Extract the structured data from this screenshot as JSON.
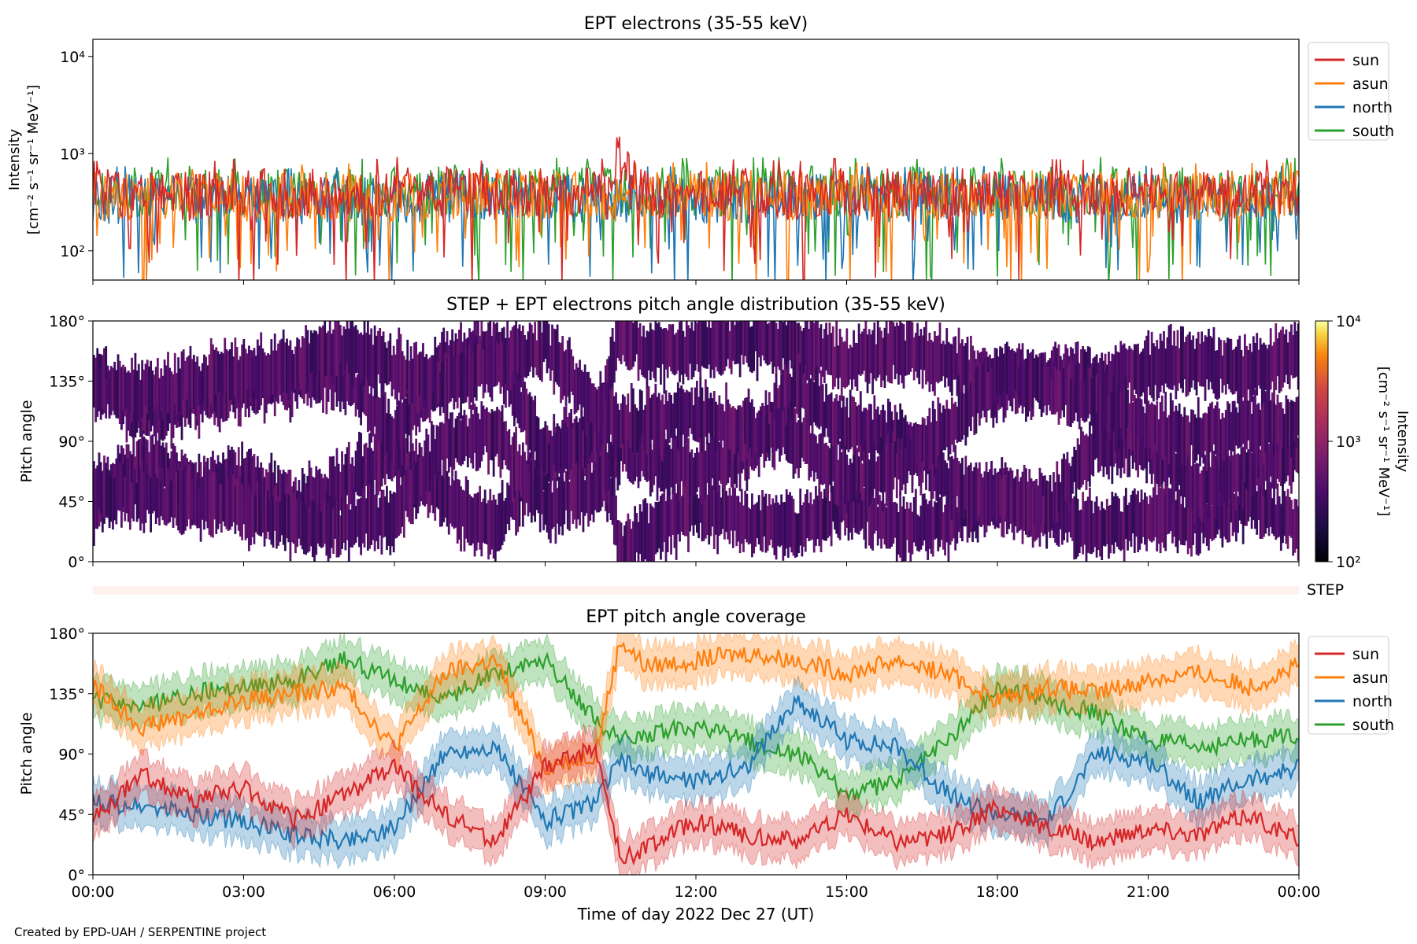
{
  "footer": "Created by EPD-UAH / SERPENTINE project",
  "colors": {
    "sun": "#d62728",
    "asun": "#ff7f0e",
    "north": "#1f77b4",
    "south": "#2ca02c"
  },
  "chart_data": [
    {
      "id": "intensity",
      "type": "line",
      "title": "EPT electrons (35-55 keV)",
      "ylabel_line1": "Intensity",
      "ylabel_line2": "[cm⁻² s⁻¹ sr⁻¹ MeV⁻¹]",
      "yscale": "log",
      "ylim": [
        50,
        15000
      ],
      "yticks": [
        {
          "value": 100,
          "label": "10²"
        },
        {
          "value": 1000,
          "label": "10³"
        },
        {
          "value": 10000,
          "label": "10⁴"
        }
      ],
      "xlim": [
        "2022-12-27 00:00",
        "2022-12-28 00:00"
      ],
      "legend_position": "outside-right-top",
      "series": [
        {
          "name": "sun",
          "color": "#d62728",
          "x_hours": [
            0,
            1,
            2,
            3,
            4,
            5,
            6,
            7,
            8,
            9,
            10,
            10.5,
            11,
            12,
            13,
            14,
            15,
            16,
            17,
            18,
            19,
            20,
            21,
            22,
            23,
            24
          ],
          "values": [
            380,
            400,
            360,
            410,
            390,
            370,
            420,
            400,
            380,
            410,
            400,
            900,
            420,
            390,
            400,
            380,
            410,
            390,
            400,
            380,
            400,
            390,
            410,
            380,
            390,
            400
          ]
        },
        {
          "name": "asun",
          "color": "#ff7f0e",
          "x_hours": [
            0,
            2,
            4,
            6,
            8,
            10,
            12,
            14,
            16,
            18,
            20,
            22,
            24
          ],
          "values": [
            360,
            380,
            350,
            370,
            390,
            360,
            370,
            380,
            360,
            370,
            380,
            360,
            370
          ]
        },
        {
          "name": "north",
          "color": "#1f77b4",
          "x_hours": [
            0,
            2,
            4,
            6,
            8,
            10,
            12,
            14,
            16,
            18,
            20,
            22,
            24
          ],
          "values": [
            330,
            350,
            320,
            340,
            360,
            330,
            340,
            350,
            330,
            340,
            350,
            330,
            340
          ]
        },
        {
          "name": "south",
          "color": "#2ca02c",
          "x_hours": [
            0,
            2,
            4,
            6,
            8,
            10,
            12,
            14,
            16,
            18,
            20,
            22,
            24
          ],
          "values": [
            400,
            420,
            390,
            410,
            430,
            400,
            410,
            420,
            400,
            410,
            420,
            400,
            410
          ]
        }
      ]
    },
    {
      "id": "pad",
      "type": "heatmap",
      "title": "STEP + EPT electrons pitch angle distribution (35-55 keV)",
      "ylabel": "Pitch angle",
      "ylim": [
        0,
        180
      ],
      "yticks": [
        "0°",
        "45°",
        "90°",
        "135°",
        "180°"
      ],
      "xlim": [
        "2022-12-27 00:00",
        "2022-12-28 00:00"
      ],
      "colorbar": {
        "label_line1": "Intensity",
        "label_line2": "[cm⁻² s⁻¹ sr⁻¹ MeV⁻¹]",
        "scale": "log",
        "range": [
          100,
          10000
        ],
        "ticks": [
          {
            "value": 100,
            "label": "10²"
          },
          {
            "value": 1000,
            "label": "10³"
          },
          {
            "value": 10000,
            "label": "10⁴"
          }
        ],
        "colormap": "inferno"
      },
      "typical_intensity": 400
    },
    {
      "id": "step_bar",
      "type": "heatmap",
      "label": "STEP",
      "typical_intensity": 0
    },
    {
      "id": "coverage",
      "type": "line",
      "title": "EPT pitch angle coverage",
      "ylabel": "Pitch angle",
      "ylim": [
        0,
        180
      ],
      "yticks": [
        "0°",
        "45°",
        "90°",
        "135°",
        "180°"
      ],
      "xlim": [
        "2022-12-27 00:00",
        "2022-12-28 00:00"
      ],
      "xticks": [
        "00:00",
        "03:00",
        "06:00",
        "09:00",
        "12:00",
        "15:00",
        "18:00",
        "21:00",
        "00:00"
      ],
      "xlabel": "Time of day 2022 Dec 27 (UT)",
      "legend_position": "outside-right-top",
      "band_halfwidth_deg": 15,
      "series": [
        {
          "name": "sun",
          "color": "#d62728",
          "x_hours": [
            0,
            1,
            2,
            3,
            4,
            5,
            6,
            7,
            8,
            9,
            10,
            10.5,
            11,
            12,
            13,
            14,
            15,
            16,
            17,
            18,
            19,
            20,
            21,
            22,
            23,
            24
          ],
          "values": [
            40,
            75,
            55,
            65,
            40,
            60,
            80,
            45,
            25,
            80,
            95,
            10,
            20,
            40,
            30,
            25,
            45,
            25,
            30,
            50,
            35,
            25,
            35,
            30,
            45,
            25
          ]
        },
        {
          "name": "asun",
          "color": "#ff7f0e",
          "x_hours": [
            0,
            1,
            2,
            3,
            4,
            5,
            6,
            7,
            8,
            9,
            10,
            10.5,
            11,
            12,
            13,
            14,
            15,
            16,
            17,
            18,
            19,
            20,
            21,
            22,
            23,
            24
          ],
          "values": [
            140,
            110,
            120,
            130,
            135,
            140,
            95,
            150,
            160,
            80,
            90,
            175,
            155,
            160,
            165,
            160,
            150,
            160,
            150,
            130,
            140,
            135,
            145,
            150,
            140,
            155
          ]
        },
        {
          "name": "north",
          "color": "#1f77b4",
          "x_hours": [
            0,
            1,
            2,
            3,
            4,
            5,
            6,
            7,
            8,
            9,
            10,
            10.5,
            11,
            12,
            13,
            14,
            15,
            16,
            17,
            18,
            19,
            20,
            21,
            22,
            23,
            24
          ],
          "values": [
            55,
            50,
            45,
            40,
            30,
            25,
            35,
            90,
            95,
            40,
            55,
            85,
            75,
            70,
            80,
            130,
            100,
            95,
            60,
            45,
            40,
            90,
            85,
            55,
            70,
            80
          ]
        },
        {
          "name": "south",
          "color": "#2ca02c",
          "x_hours": [
            0,
            1,
            2,
            3,
            4,
            5,
            6,
            7,
            8,
            9,
            10,
            10.5,
            11,
            12,
            13,
            14,
            15,
            16,
            17,
            18,
            19,
            20,
            21,
            22,
            23,
            24
          ],
          "values": [
            130,
            125,
            135,
            140,
            145,
            160,
            145,
            130,
            150,
            160,
            115,
            100,
            105,
            110,
            100,
            90,
            60,
            70,
            100,
            140,
            130,
            120,
            100,
            95,
            100,
            105
          ]
        }
      ]
    }
  ]
}
